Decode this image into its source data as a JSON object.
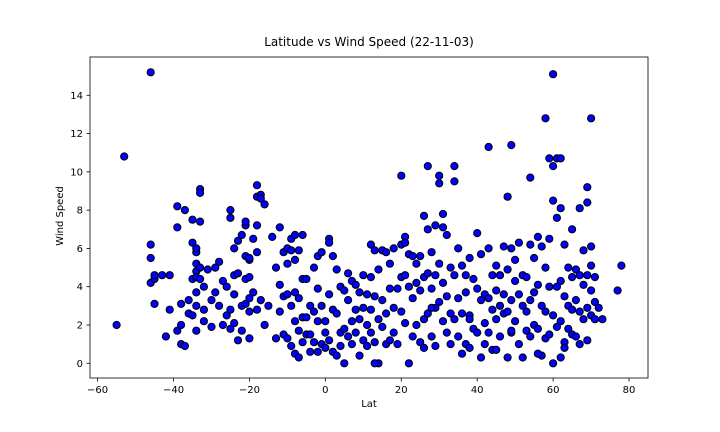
{
  "chart_data": {
    "type": "scatter",
    "title": "Latitude vs Wind Speed (22-11-03)",
    "xlabel": "Lat",
    "ylabel": "Wind Speed",
    "xlim": [
      -62,
      85
    ],
    "ylim": [
      -0.77,
      16.0
    ],
    "xticks": [
      -60,
      -40,
      -20,
      0,
      20,
      40,
      60,
      80
    ],
    "yticks": [
      0,
      2,
      4,
      6,
      8,
      10,
      12,
      14
    ],
    "grid": false,
    "marker_color": "#0000ff",
    "marker_edge": "#000000",
    "points": [
      [
        -55,
        2.0
      ],
      [
        -53,
        10.8
      ],
      [
        -46,
        15.2
      ],
      [
        -46,
        6.2
      ],
      [
        -46,
        5.5
      ],
      [
        -46,
        4.2
      ],
      [
        -45,
        4.4
      ],
      [
        -45,
        4.6
      ],
      [
        -45,
        3.1
      ],
      [
        -43,
        4.6
      ],
      [
        -42,
        1.4
      ],
      [
        -41,
        4.6
      ],
      [
        -41,
        2.8
      ],
      [
        -39,
        8.2
      ],
      [
        -39,
        7.1
      ],
      [
        -39,
        1.7
      ],
      [
        -38,
        3.1
      ],
      [
        -38,
        2.0
      ],
      [
        -38,
        1.0
      ],
      [
        -37,
        0.9
      ],
      [
        -37,
        8.0
      ],
      [
        -36,
        3.3
      ],
      [
        -36,
        2.6
      ],
      [
        -35,
        2.5
      ],
      [
        -35,
        4.4
      ],
      [
        -35,
        7.5
      ],
      [
        -35,
        6.3
      ],
      [
        -34,
        5.8
      ],
      [
        -34,
        5.2
      ],
      [
        -34,
        4.8
      ],
      [
        -34,
        4.5
      ],
      [
        -34,
        3.7
      ],
      [
        -34,
        3.0
      ],
      [
        -34,
        1.7
      ],
      [
        -33,
        9.1
      ],
      [
        -33,
        8.9
      ],
      [
        -33,
        7.4
      ],
      [
        -33,
        5.0
      ],
      [
        -33,
        4.4
      ],
      [
        -32,
        4.0
      ],
      [
        -32,
        2.8
      ],
      [
        -32,
        2.2
      ],
      [
        -31,
        4.9
      ],
      [
        -30,
        3.3
      ],
      [
        -30,
        1.9
      ],
      [
        -29,
        5.0
      ],
      [
        -29,
        3.7
      ],
      [
        -28,
        5.3
      ],
      [
        -28,
        3.0
      ],
      [
        -27,
        4.3
      ],
      [
        -27,
        2.0
      ],
      [
        -26,
        4.0
      ],
      [
        -26,
        2.5
      ],
      [
        -25,
        8.0
      ],
      [
        -25,
        7.6
      ],
      [
        -25,
        2.8
      ],
      [
        -25,
        1.8
      ],
      [
        -24,
        6.0
      ],
      [
        -24,
        4.6
      ],
      [
        -24,
        3.6
      ],
      [
        -24,
        2.1
      ],
      [
        -23,
        6.4
      ],
      [
        -23,
        4.7
      ],
      [
        -23,
        1.2
      ],
      [
        -22,
        6.7
      ],
      [
        -22,
        3.0
      ],
      [
        -22,
        1.7
      ],
      [
        -21,
        7.2
      ],
      [
        -21,
        7.4
      ],
      [
        -21,
        5.6
      ],
      [
        -21,
        4.4
      ],
      [
        -21,
        3.1
      ],
      [
        -20,
        5.4
      ],
      [
        -20,
        4.5
      ],
      [
        -20,
        3.4
      ],
      [
        -20,
        2.7
      ],
      [
        -20,
        1.3
      ],
      [
        -19,
        6.5
      ],
      [
        -19,
        3.7
      ],
      [
        -18,
        9.3
      ],
      [
        -18,
        8.7
      ],
      [
        -18,
        7.2
      ],
      [
        -18,
        5.8
      ],
      [
        -18,
        2.8
      ],
      [
        -17,
        8.8
      ],
      [
        -17,
        8.6
      ],
      [
        -17,
        3.3
      ],
      [
        -16,
        8.3
      ],
      [
        -16,
        2.0
      ],
      [
        -15,
        3.0
      ],
      [
        -14,
        6.6
      ],
      [
        -13,
        5.0
      ],
      [
        -13,
        1.3
      ],
      [
        -12,
        7.1
      ],
      [
        -12,
        4.1
      ],
      [
        -12,
        2.7
      ],
      [
        -11,
        5.8
      ],
      [
        -11,
        3.5
      ],
      [
        -11,
        1.5
      ],
      [
        -10,
        6.0
      ],
      [
        -10,
        5.2
      ],
      [
        -10,
        3.6
      ],
      [
        -10,
        1.3
      ],
      [
        -9,
        6.5
      ],
      [
        -9,
        5.9
      ],
      [
        -9,
        3.0
      ],
      [
        -9,
        0.9
      ],
      [
        -8,
        6.7
      ],
      [
        -8,
        5.4
      ],
      [
        -8,
        3.7
      ],
      [
        -8,
        2.2
      ],
      [
        -8,
        0.5
      ],
      [
        -7,
        5.9
      ],
      [
        -7,
        3.4
      ],
      [
        -7,
        1.7
      ],
      [
        -7,
        0.3
      ],
      [
        -6,
        6.7
      ],
      [
        -6,
        4.4
      ],
      [
        -6,
        2.4
      ],
      [
        -6,
        1.1
      ],
      [
        -5,
        4.4
      ],
      [
        -5,
        2.4
      ],
      [
        -5,
        1.5
      ],
      [
        -4,
        3.0
      ],
      [
        -4,
        1.5
      ],
      [
        -4,
        0.6
      ],
      [
        -3,
        5.0
      ],
      [
        -3,
        2.7
      ],
      [
        -3,
        1.1
      ],
      [
        -2,
        5.6
      ],
      [
        -2,
        3.9
      ],
      [
        -2,
        2.2
      ],
      [
        -2,
        0.6
      ],
      [
        -1,
        5.8
      ],
      [
        -1,
        3.0
      ],
      [
        -1,
        1.0
      ],
      [
        0,
        2.2
      ],
      [
        0,
        1.6
      ],
      [
        0,
        0.8
      ],
      [
        1,
        6.5
      ],
      [
        1,
        6.3
      ],
      [
        1,
        3.6
      ],
      [
        1,
        1.2
      ],
      [
        2,
        5.6
      ],
      [
        2,
        2.8
      ],
      [
        2,
        0.6
      ],
      [
        3,
        4.9
      ],
      [
        3,
        2.6
      ],
      [
        3,
        0.4
      ],
      [
        4,
        4.0
      ],
      [
        4,
        1.6
      ],
      [
        4,
        0.9
      ],
      [
        5,
        3.8
      ],
      [
        5,
        1.8
      ],
      [
        5,
        0.0
      ],
      [
        6,
        4.7
      ],
      [
        6,
        3.3
      ],
      [
        6,
        1.4
      ],
      [
        7,
        4.3
      ],
      [
        7,
        2.2
      ],
      [
        7,
        1.0
      ],
      [
        8,
        4.1
      ],
      [
        8,
        2.8
      ],
      [
        8,
        1.6
      ],
      [
        9,
        3.7
      ],
      [
        9,
        2.3
      ],
      [
        9,
        0.4
      ],
      [
        10,
        4.6
      ],
      [
        10,
        2.9
      ],
      [
        10,
        1.2
      ],
      [
        11,
        3.6
      ],
      [
        11,
        2.0
      ],
      [
        11,
        0.9
      ],
      [
        12,
        6.2
      ],
      [
        12,
        4.5
      ],
      [
        12,
        2.8
      ],
      [
        12,
        1.6
      ],
      [
        13,
        5.9
      ],
      [
        13,
        3.5
      ],
      [
        13,
        1.1
      ],
      [
        14,
        4.9
      ],
      [
        14,
        2.3
      ],
      [
        14,
        0.0
      ],
      [
        15,
        5.9
      ],
      [
        15,
        3.3
      ],
      [
        15,
        1.9
      ],
      [
        16,
        5.8
      ],
      [
        16,
        2.6
      ],
      [
        16,
        1.0
      ],
      [
        17,
        5.2
      ],
      [
        17,
        3.9
      ],
      [
        17,
        1.2
      ],
      [
        18,
        6.0
      ],
      [
        18,
        2.9
      ],
      [
        18,
        1.6
      ],
      [
        19,
        3.9
      ],
      [
        19,
        1.0
      ],
      [
        20,
        9.8
      ],
      [
        20,
        6.2
      ],
      [
        20,
        4.5
      ],
      [
        20,
        2.7
      ],
      [
        21,
        6.6
      ],
      [
        21,
        4.6
      ],
      [
        21,
        2.1
      ],
      [
        22,
        5.7
      ],
      [
        22,
        4.0
      ],
      [
        22,
        0.0
      ],
      [
        23,
        5.6
      ],
      [
        23,
        3.4
      ],
      [
        23,
        1.4
      ],
      [
        24,
        5.2
      ],
      [
        24,
        4.2
      ],
      [
        24,
        2.0
      ],
      [
        25,
        5.6
      ],
      [
        25,
        3.8
      ],
      [
        25,
        1.1
      ],
      [
        26,
        7.7
      ],
      [
        26,
        4.5
      ],
      [
        26,
        2.3
      ],
      [
        26,
        0.8
      ],
      [
        27,
        10.3
      ],
      [
        27,
        7.0
      ],
      [
        27,
        4.7
      ],
      [
        27,
        2.6
      ],
      [
        28,
        5.8
      ],
      [
        28,
        3.9
      ],
      [
        28,
        1.4
      ],
      [
        29,
        7.2
      ],
      [
        29,
        4.6
      ],
      [
        29,
        2.9
      ],
      [
        29,
        0.9
      ],
      [
        30,
        9.8
      ],
      [
        30,
        9.4
      ],
      [
        30,
        5.2
      ],
      [
        30,
        3.2
      ],
      [
        31,
        7.8
      ],
      [
        31,
        7.1
      ],
      [
        31,
        4.2
      ],
      [
        31,
        2.2
      ],
      [
        32,
        6.7
      ],
      [
        32,
        3.5
      ],
      [
        32,
        1.6
      ],
      [
        33,
        5.0
      ],
      [
        33,
        2.6
      ],
      [
        33,
        1.0
      ],
      [
        34,
        10.3
      ],
      [
        34,
        9.5
      ],
      [
        34,
        4.6
      ],
      [
        34,
        2.3
      ],
      [
        35,
        6.0
      ],
      [
        35,
        3.4
      ],
      [
        35,
        1.4
      ],
      [
        36,
        5.1
      ],
      [
        36,
        2.6
      ],
      [
        36,
        0.5
      ],
      [
        37,
        4.6
      ],
      [
        37,
        3.7
      ],
      [
        37,
        1.0
      ],
      [
        38,
        5.5
      ],
      [
        38,
        2.5
      ],
      [
        38,
        0.8
      ],
      [
        39,
        4.4
      ],
      [
        39,
        1.8
      ],
      [
        40,
        6.8
      ],
      [
        40,
        3.9
      ],
      [
        40,
        1.6
      ],
      [
        41,
        5.7
      ],
      [
        41,
        3.3
      ],
      [
        41,
        0.3
      ],
      [
        42,
        3.6
      ],
      [
        42,
        2.1
      ],
      [
        42,
        1.0
      ],
      [
        43,
        11.3
      ],
      [
        43,
        6.0
      ],
      [
        43,
        3.4
      ],
      [
        43,
        1.6
      ],
      [
        44,
        4.6
      ],
      [
        44,
        2.8
      ],
      [
        44,
        0.7
      ],
      [
        45,
        5.1
      ],
      [
        45,
        3.8
      ],
      [
        45,
        2.3
      ],
      [
        46,
        4.6
      ],
      [
        46,
        3.0
      ],
      [
        46,
        1.4
      ],
      [
        47,
        6.1
      ],
      [
        47,
        3.6
      ],
      [
        47,
        2.6
      ],
      [
        48,
        8.7
      ],
      [
        48,
        4.9
      ],
      [
        48,
        2.7
      ],
      [
        48,
        0.3
      ],
      [
        49,
        11.4
      ],
      [
        49,
        6.0
      ],
      [
        49,
        3.3
      ],
      [
        49,
        1.6
      ],
      [
        50,
        5.4
      ],
      [
        50,
        4.3
      ],
      [
        50,
        2.2
      ],
      [
        51,
        6.3
      ],
      [
        51,
        3.6
      ],
      [
        51,
        1.0
      ],
      [
        52,
        4.6
      ],
      [
        52,
        3.0
      ],
      [
        52,
        0.3
      ],
      [
        53,
        4.5
      ],
      [
        53,
        2.7
      ],
      [
        53,
        1.7
      ],
      [
        54,
        9.7
      ],
      [
        54,
        6.2
      ],
      [
        54,
        3.3
      ],
      [
        54,
        1.4
      ],
      [
        55,
        5.5
      ],
      [
        55,
        3.7
      ],
      [
        55,
        2.0
      ],
      [
        56,
        6.6
      ],
      [
        56,
        4.1
      ],
      [
        56,
        1.8
      ],
      [
        57,
        6.1
      ],
      [
        57,
        3.0
      ],
      [
        57,
        0.4
      ],
      [
        58,
        12.8
      ],
      [
        58,
        5.0
      ],
      [
        58,
        2.7
      ],
      [
        58,
        1.3
      ],
      [
        59,
        10.7
      ],
      [
        59,
        6.5
      ],
      [
        59,
        4.0
      ],
      [
        59,
        1.5
      ],
      [
        60,
        15.1
      ],
      [
        60,
        10.3
      ],
      [
        60,
        8.5
      ],
      [
        60,
        2.5
      ],
      [
        60,
        0.0
      ],
      [
        61,
        10.7
      ],
      [
        61,
        7.6
      ],
      [
        61,
        4.0
      ],
      [
        61,
        1.9
      ],
      [
        62,
        10.7
      ],
      [
        62,
        8.1
      ],
      [
        62,
        4.3
      ],
      [
        62,
        2.2
      ],
      [
        62,
        0.3
      ],
      [
        63,
        6.2
      ],
      [
        63,
        3.5
      ],
      [
        63,
        1.1
      ],
      [
        64,
        5.0
      ],
      [
        64,
        3.0
      ],
      [
        64,
        1.8
      ],
      [
        65,
        7.0
      ],
      [
        65,
        4.5
      ],
      [
        65,
        2.8
      ],
      [
        65,
        1.5
      ],
      [
        66,
        4.9
      ],
      [
        66,
        3.3
      ],
      [
        66,
        1.4
      ],
      [
        67,
        8.1
      ],
      [
        67,
        4.6
      ],
      [
        67,
        2.7
      ],
      [
        67,
        1.0
      ],
      [
        68,
        5.9
      ],
      [
        68,
        4.1
      ],
      [
        68,
        2.3
      ],
      [
        69,
        9.2
      ],
      [
        69,
        8.4
      ],
      [
        69,
        4.6
      ],
      [
        69,
        2.9
      ],
      [
        69,
        1.2
      ],
      [
        70,
        12.8
      ],
      [
        70,
        6.1
      ],
      [
        70,
        5.1
      ],
      [
        70,
        3.8
      ],
      [
        70,
        2.5
      ],
      [
        71,
        4.5
      ],
      [
        71,
        3.2
      ],
      [
        71,
        2.3
      ],
      [
        72,
        2.9
      ],
      [
        73,
        2.3
      ],
      [
        77,
        3.8
      ],
      [
        78,
        5.1
      ],
      [
        45,
        0.7
      ],
      [
        56,
        0.5
      ],
      [
        63,
        0.8
      ],
      [
        28,
        2.9
      ],
      [
        13,
        0.0
      ],
      [
        -20,
        5.5
      ],
      [
        38,
        2.3
      ],
      [
        21,
        6.3
      ],
      [
        -34,
        6.0
      ],
      [
        49,
        1.7
      ]
    ]
  }
}
